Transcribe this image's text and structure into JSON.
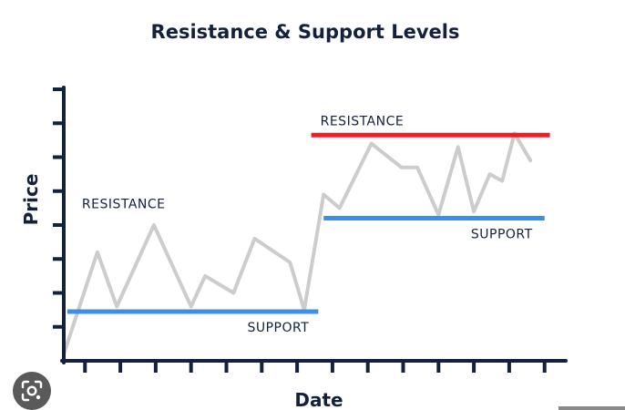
{
  "chart_data": {
    "type": "line",
    "title": "Resistance & Support Levels",
    "xlabel": "Date",
    "ylabel": "Price",
    "xlim": [
      0,
      14.2
    ],
    "ylim": [
      0,
      8
    ],
    "x_ticks": [
      0.6,
      1.6,
      2.6,
      3.6,
      4.6,
      5.6,
      6.6,
      7.6,
      8.6,
      9.6,
      10.6,
      11.6,
      12.6,
      13.6
    ],
    "y_ticks": [
      1,
      2,
      3,
      4,
      5,
      6,
      7,
      8
    ],
    "grid": false,
    "series": [
      {
        "color": "#cccccc",
        "x": [
          0.0,
          0.95,
          1.5,
          2.55,
          3.6,
          4.0,
          4.8,
          5.4,
          6.4,
          6.8,
          7.35,
          7.8,
          8.7,
          9.55,
          10.0,
          10.6,
          11.15,
          11.6,
          12.05,
          12.4,
          12.75,
          13.2
        ],
        "y": [
          0.2,
          3.2,
          1.6,
          4.0,
          1.6,
          2.5,
          2.0,
          3.6,
          2.9,
          1.5,
          4.9,
          4.5,
          6.4,
          5.7,
          5.7,
          4.3,
          6.3,
          4.4,
          5.5,
          5.3,
          6.7,
          5.9
        ]
      }
    ],
    "levels": [
      {
        "kind": "resistance",
        "label": "RESISTANCE",
        "y": 4.2,
        "x_start": 0.1,
        "x_end": 7.35,
        "color": "#e8202c"
      },
      {
        "kind": "support",
        "label": "SUPPORT",
        "y": 1.45,
        "x_start": 0.1,
        "x_end": 7.2,
        "color": "#3d8ee8"
      },
      {
        "kind": "resistance",
        "label": "RESISTANCE",
        "y": 6.65,
        "x_start": 7.0,
        "x_end": 13.75,
        "color": "#e8202c"
      },
      {
        "kind": "support",
        "label": "SUPPORT",
        "y": 4.2,
        "x_start": 7.35,
        "x_end": 13.6,
        "color": "#3d8ee8"
      }
    ]
  },
  "ui": {
    "lens_icon": "lens-icon"
  }
}
